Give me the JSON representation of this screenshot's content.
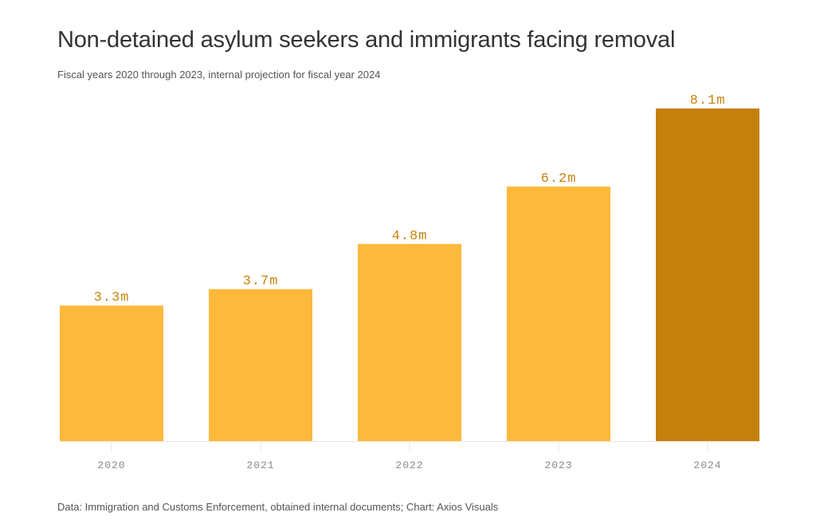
{
  "chart_data": {
    "type": "bar",
    "title": "Non-detained asylum seekers and immigrants facing removal",
    "subtitle": "Fiscal years 2020 through 2023, internal projection for fiscal year 2024",
    "categories": [
      "2020",
      "2021",
      "2022",
      "2023",
      "2024"
    ],
    "values": [
      3.3,
      3.7,
      4.8,
      6.2,
      8.1
    ],
    "data_labels": [
      "3.3m",
      "3.7m",
      "4.8m",
      "6.2m",
      "8.1m"
    ],
    "unit": "millions",
    "projected": [
      false,
      false,
      false,
      false,
      true
    ],
    "colors": {
      "actual": "#fdb93c",
      "projected": "#c4800d",
      "label": "#c7820d",
      "axis": "#e6e6e6",
      "tick_label": "#8a8a8a"
    },
    "xlabel": "",
    "ylabel": "",
    "ylim": [
      0,
      8.1
    ],
    "grid": false,
    "legend": "none",
    "source": "Data: Immigration and Customs Enforcement, obtained internal documents; Chart: Axios Visuals"
  }
}
